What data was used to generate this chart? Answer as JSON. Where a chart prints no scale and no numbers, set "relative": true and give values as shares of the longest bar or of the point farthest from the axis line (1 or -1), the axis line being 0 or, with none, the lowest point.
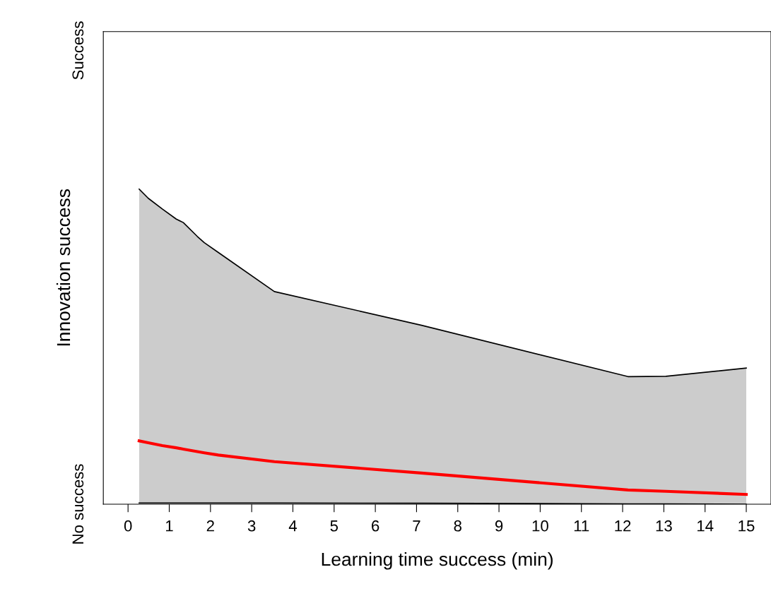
{
  "chart_data": {
    "type": "line",
    "xlabel": "Learning time success (min)",
    "ylabel": "Innovation success",
    "relative": true,
    "x": [
      0.27,
      0.49,
      0.83,
      1.17,
      1.34,
      1.68,
      1.85,
      2.19,
      3.55,
      7.12,
      12.13,
      13.05,
      15
    ],
    "series": [
      {
        "color": "#000000",
        "values": [
          1,
          0.971,
          0.937,
          0.905,
          0.894,
          0.85,
          0.83,
          0.799,
          0.675,
          0.568,
          0.405,
          0.406,
          0.432
        ]
      },
      {
        "color": "#000000",
        "values": [
          0.004,
          0.004,
          0.004,
          0.004,
          0.004,
          0.004,
          0.004,
          0.004,
          0.004,
          0.003,
          0.001,
          0.001,
          0.0
        ]
      },
      {
        "color": "#ff0000",
        "values": [
          0.201,
          0.195,
          0.186,
          0.179,
          0.175,
          0.167,
          0.163,
          0.156,
          0.135,
          0.099,
          0.045,
          0.041,
          0.031
        ],
        "lower": [
          0.004,
          0.004,
          0.004,
          0.004,
          0.004,
          0.004,
          0.004,
          0.004,
          0.004,
          0.003,
          0.001,
          0.001,
          0.0
        ],
        "upper": [
          1,
          0.971,
          0.937,
          0.905,
          0.894,
          0.85,
          0.83,
          0.799,
          0.675,
          0.568,
          0.405,
          0.406,
          0.432
        ]
      }
    ],
    "annotations": [
      "No success",
      "Success"
    ],
    "xlim": [
      -0.6,
      15.6
    ],
    "xticks": [
      0,
      1,
      2,
      3,
      4,
      5,
      6,
      7,
      8,
      9,
      10,
      11,
      12,
      13,
      14,
      15
    ],
    "grid": false,
    "marker": "none",
    "line_style": "solid"
  }
}
